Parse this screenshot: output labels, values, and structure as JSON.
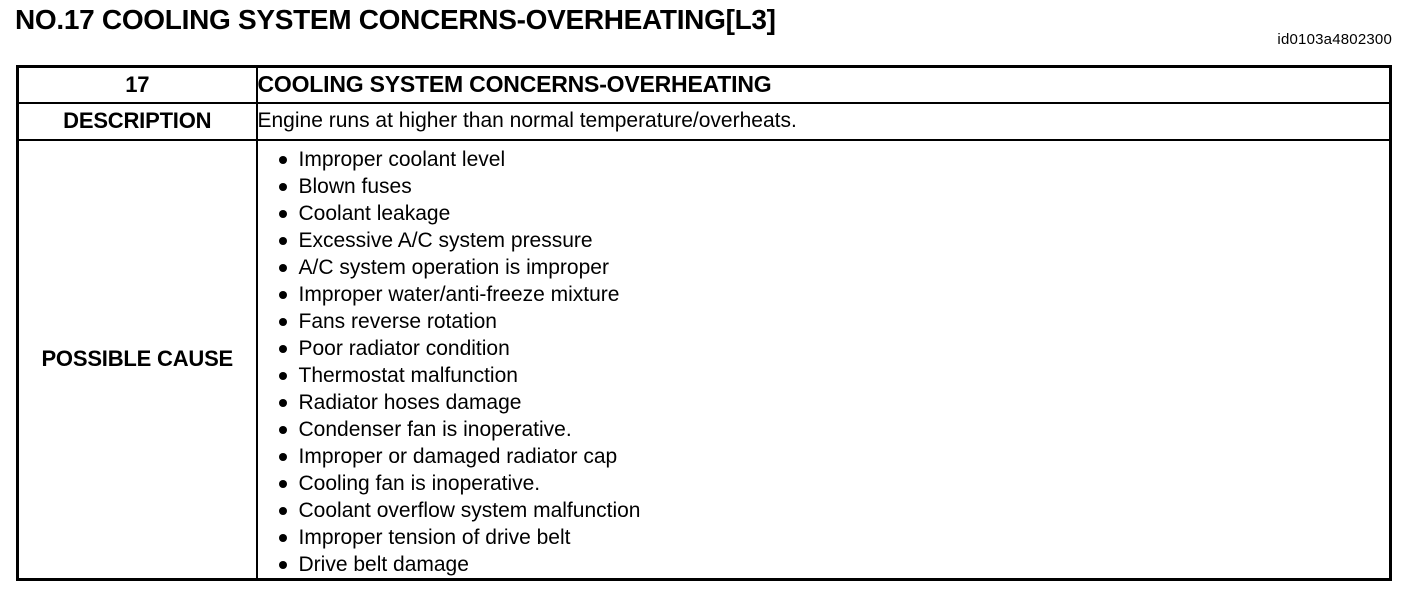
{
  "page": {
    "title": "NO.17 COOLING SYSTEM CONCERNS-OVERHEATING[L3]",
    "doc_id": "id0103a4802300"
  },
  "table": {
    "number": "17",
    "header": "COOLING SYSTEM CONCERNS-OVERHEATING",
    "description_label": "DESCRIPTION",
    "description": "Engine runs at higher than normal temperature/overheats.",
    "possible_cause_label": "POSSIBLE CAUSE",
    "possible_causes": [
      "Improper coolant level",
      "Blown fuses",
      "Coolant leakage",
      "Excessive A/C system pressure",
      "A/C system operation is improper",
      "Improper water/anti-freeze mixture",
      "Fans reverse rotation",
      "Poor radiator condition",
      "Thermostat malfunction",
      "Radiator hoses damage",
      "Condenser fan is inoperative.",
      "Improper or damaged radiator cap",
      "Cooling fan is inoperative.",
      "Coolant overflow system malfunction",
      "Improper tension of drive belt",
      "Drive belt damage"
    ]
  }
}
